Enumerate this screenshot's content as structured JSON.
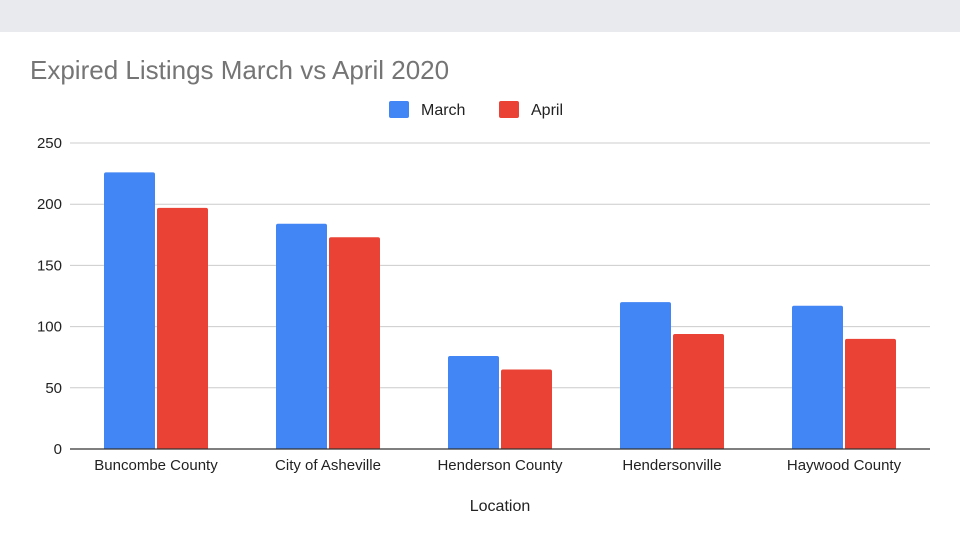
{
  "chart_data": {
    "type": "bar",
    "title": "Expired Listings March vs April 2020",
    "xlabel": "Location",
    "ylabel": "",
    "categories": [
      "Buncombe County",
      "City of Asheville",
      "Henderson County",
      "Hendersonville",
      "Haywood County"
    ],
    "series": [
      {
        "name": "March",
        "color": "#4285f4",
        "values": [
          226,
          184,
          76,
          120,
          117
        ]
      },
      {
        "name": "April",
        "color": "#ea4335",
        "values": [
          197,
          173,
          65,
          94,
          90
        ]
      }
    ],
    "ylim": [
      0,
      250
    ],
    "yticks": [
      0,
      50,
      100,
      150,
      200,
      250
    ],
    "grid": true,
    "legend_position": "top-center"
  }
}
